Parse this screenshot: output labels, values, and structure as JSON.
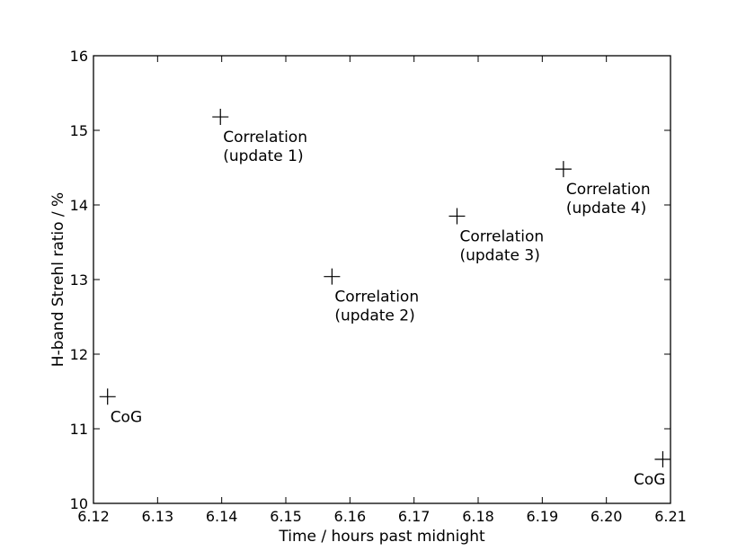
{
  "chart_data": {
    "type": "scatter",
    "title": "",
    "xlabel": "Time / hours past midnight",
    "ylabel": "H-band Strehl ratio / %",
    "xlim": [
      6.12,
      6.21
    ],
    "ylim": [
      10,
      16
    ],
    "xticks": [
      "6.12",
      "6.13",
      "6.14",
      "6.15",
      "6.16",
      "6.17",
      "6.18",
      "6.19",
      "6.20",
      "6.21"
    ],
    "yticks": [
      "10",
      "11",
      "12",
      "13",
      "14",
      "15",
      "16"
    ],
    "grid": false,
    "marker": "plus",
    "points": [
      {
        "x": 6.1222,
        "y": 11.43,
        "label": "CoG"
      },
      {
        "x": 6.1398,
        "y": 15.18,
        "label": "Correlation\n(update 1)"
      },
      {
        "x": 6.1572,
        "y": 13.04,
        "label": "Correlation\n(update 2)"
      },
      {
        "x": 6.1767,
        "y": 13.85,
        "label": "Correlation\n(update 3)"
      },
      {
        "x": 6.1933,
        "y": 14.48,
        "label": "Correlation\n(update 4)"
      },
      {
        "x": 6.2088,
        "y": 10.59,
        "label": "CoG"
      }
    ]
  }
}
